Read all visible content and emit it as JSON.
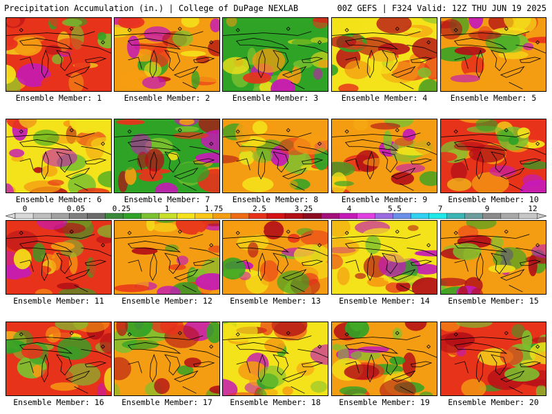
{
  "header": {
    "left": "Precipitation Accumulation (in.) | College of DuPage NEXLAB",
    "right": "00Z GEFS | F324 Valid: 12Z THU JUN 19 2025"
  },
  "members": [
    {
      "label": "Ensemble Member: 1",
      "dominant": "#e8331b"
    },
    {
      "label": "Ensemble Member: 2",
      "dominant": "#f59d12"
    },
    {
      "label": "Ensemble Member: 3",
      "dominant": "#2fa326"
    },
    {
      "label": "Ensemble Member: 4",
      "dominant": "#f4e21a"
    },
    {
      "label": "Ensemble Member: 5",
      "dominant": "#f59d12"
    },
    {
      "label": "Ensemble Member: 6",
      "dominant": "#f4e21a"
    },
    {
      "label": "Ensemble Member: 7",
      "dominant": "#2fa326"
    },
    {
      "label": "Ensemble Member: 8",
      "dominant": "#f59d12"
    },
    {
      "label": "Ensemble Member: 9",
      "dominant": "#f59d12"
    },
    {
      "label": "Ensemble Member: 10",
      "dominant": "#e8331b"
    },
    {
      "label": "Ensemble Member: 11",
      "dominant": "#e8331b"
    },
    {
      "label": "Ensemble Member: 12",
      "dominant": "#f59d12"
    },
    {
      "label": "Ensemble Member: 13",
      "dominant": "#f59d12"
    },
    {
      "label": "Ensemble Member: 14",
      "dominant": "#f4e21a"
    },
    {
      "label": "Ensemble Member: 15",
      "dominant": "#f59d12"
    },
    {
      "label": "Ensemble Member: 16",
      "dominant": "#e8331b"
    },
    {
      "label": "Ensemble Member: 17",
      "dominant": "#f59d12"
    },
    {
      "label": "Ensemble Member: 18",
      "dominant": "#f4e21a"
    },
    {
      "label": "Ensemble Member: 19",
      "dominant": "#f59d12"
    },
    {
      "label": "Ensemble Member: 20",
      "dominant": "#e8331b"
    }
  ],
  "colorbar": {
    "labels": [
      "0",
      "0.05",
      "0.25",
      "1",
      "1.75",
      "2.5",
      "3.25",
      "4",
      "5.5",
      "7",
      "9",
      "12"
    ],
    "colors": [
      "#d8d8d8",
      "#bdbdbd",
      "#a0a0a0",
      "#7f7f7f",
      "#6a6a6a",
      "#3b8a3b",
      "#2fa326",
      "#7cc12f",
      "#c8df2a",
      "#f4e21a",
      "#fbc716",
      "#f59d12",
      "#ee6a13",
      "#e8331b",
      "#d41414",
      "#b30f17",
      "#8d0d22",
      "#a3107a",
      "#c41ab6",
      "#e040e0",
      "#9a6be0",
      "#6a8fe8",
      "#30d0f0",
      "#20e8e8",
      "#3ab4b4",
      "#6c9c9c",
      "#8a8a8a",
      "#a8a8a8",
      "#c6c6c6"
    ]
  }
}
